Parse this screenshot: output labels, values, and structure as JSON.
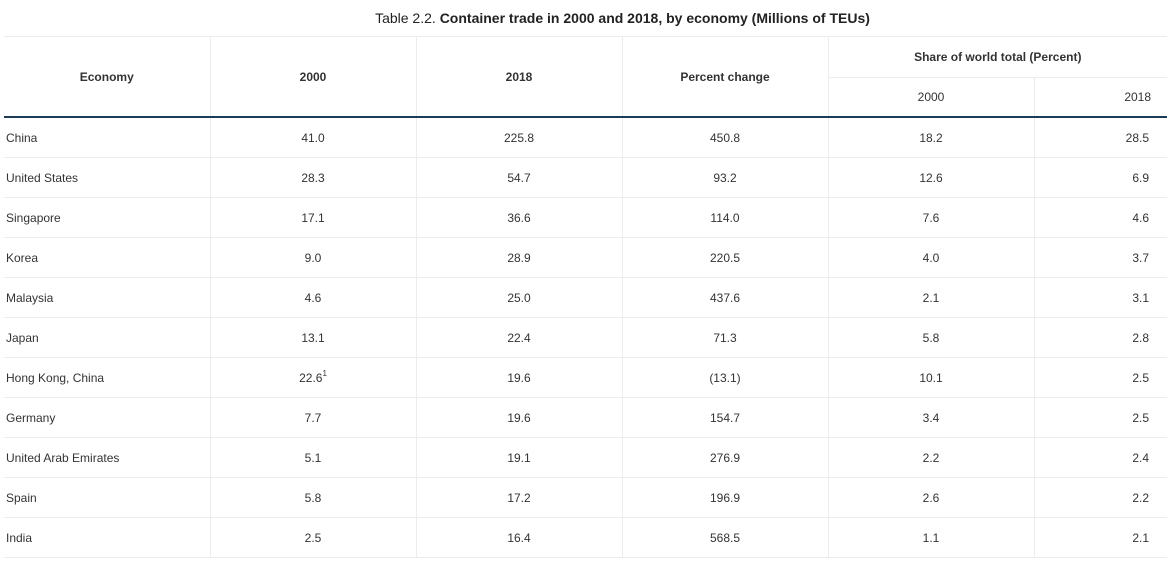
{
  "caption": {
    "prefix": "Table 2.2. ",
    "title": "Container trade in 2000 and 2018, by economy (Millions of TEUs)"
  },
  "headers": {
    "economy": "Economy",
    "y2000": "2000",
    "y2018": "2018",
    "percent_change": "Percent change",
    "share_group": "Share of world total (Percent)",
    "share_2000": "2000",
    "share_2018": "2018"
  },
  "rows": [
    {
      "economy": "China",
      "v2000": "41.0",
      "note": "",
      "v2018": "225.8",
      "pct": "450.8",
      "s2000": "18.2",
      "s2018": "28.5"
    },
    {
      "economy": "United States",
      "v2000": "28.3",
      "note": "",
      "v2018": "54.7",
      "pct": "93.2",
      "s2000": "12.6",
      "s2018": "6.9"
    },
    {
      "economy": "Singapore",
      "v2000": "17.1",
      "note": "",
      "v2018": "36.6",
      "pct": "114.0",
      "s2000": "7.6",
      "s2018": "4.6"
    },
    {
      "economy": "Korea",
      "v2000": "9.0",
      "note": "",
      "v2018": "28.9",
      "pct": "220.5",
      "s2000": "4.0",
      "s2018": "3.7"
    },
    {
      "economy": "Malaysia",
      "v2000": "4.6",
      "note": "",
      "v2018": "25.0",
      "pct": "437.6",
      "s2000": "2.1",
      "s2018": "3.1"
    },
    {
      "economy": "Japan",
      "v2000": "13.1",
      "note": "",
      "v2018": "22.4",
      "pct": "71.3",
      "s2000": "5.8",
      "s2018": "2.8"
    },
    {
      "economy": "Hong Kong, China",
      "v2000": "22.6",
      "note": "1",
      "v2018": "19.6",
      "pct": "(13.1)",
      "s2000": "10.1",
      "s2018": "2.5"
    },
    {
      "economy": "Germany",
      "v2000": "7.7",
      "note": "",
      "v2018": "19.6",
      "pct": "154.7",
      "s2000": "3.4",
      "s2018": "2.5"
    },
    {
      "economy": "United Arab Emirates",
      "v2000": "5.1",
      "note": "",
      "v2018": "19.1",
      "pct": "276.9",
      "s2000": "2.2",
      "s2018": "2.4"
    },
    {
      "economy": "Spain",
      "v2000": "5.8",
      "note": "",
      "v2018": "17.2",
      "pct": "196.9",
      "s2000": "2.6",
      "s2018": "2.2"
    },
    {
      "economy": "India",
      "v2000": "2.5",
      "note": "",
      "v2018": "16.4",
      "pct": "568.5",
      "s2000": "1.1",
      "s2018": "2.1"
    }
  ],
  "colors": {
    "header_rule": "#1c3b57",
    "grid": "#ececec",
    "text": "#333333"
  }
}
